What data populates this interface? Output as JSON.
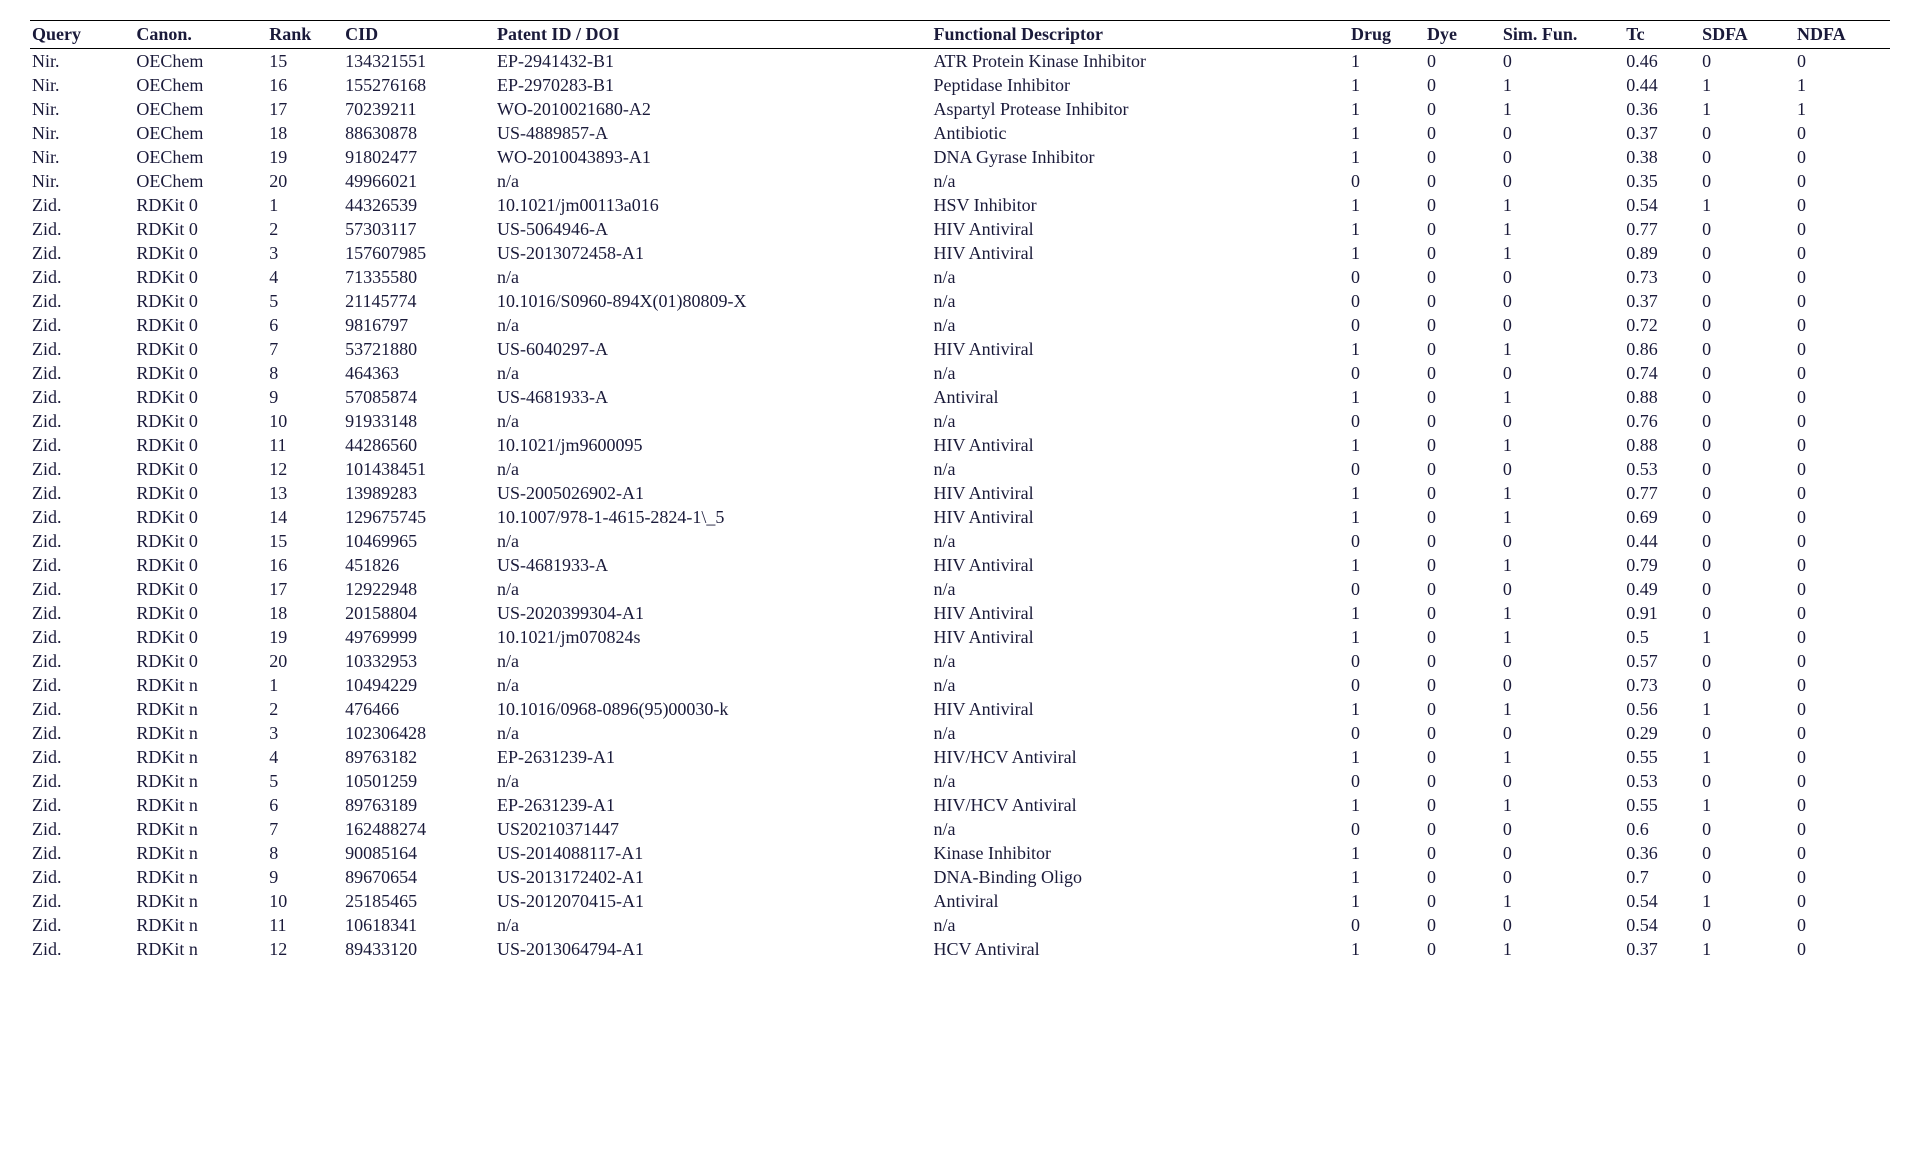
{
  "table": {
    "font_family": "Times New Roman",
    "font_size_pt": 14,
    "text_color": "#1a1a3a",
    "background_color": "#ffffff",
    "header_border_top": "#000000",
    "header_border_bottom": "#000000",
    "columns": [
      {
        "key": "query",
        "label": "Query",
        "width_pct": 5.5
      },
      {
        "key": "canon",
        "label": "Canon.",
        "width_pct": 7
      },
      {
        "key": "rank",
        "label": "Rank",
        "width_pct": 4
      },
      {
        "key": "cid",
        "label": "CID",
        "width_pct": 8
      },
      {
        "key": "patent",
        "label": "Patent ID / DOI",
        "width_pct": 23
      },
      {
        "key": "func",
        "label": "Functional Descriptor",
        "width_pct": 22
      },
      {
        "key": "drug",
        "label": "Drug",
        "width_pct": 4
      },
      {
        "key": "dye",
        "label": "Dye",
        "width_pct": 4
      },
      {
        "key": "sim",
        "label": "Sim. Fun.",
        "width_pct": 6.5
      },
      {
        "key": "tc",
        "label": "Tc",
        "width_pct": 4
      },
      {
        "key": "sdfa",
        "label": "SDFA",
        "width_pct": 5
      },
      {
        "key": "ndfa",
        "label": "NDFA",
        "width_pct": 5
      }
    ],
    "rows": [
      [
        "Nir.",
        "OEChem",
        "15",
        "134321551",
        "EP-2941432-B1",
        "ATR Protein Kinase Inhibitor",
        "1",
        "0",
        "0",
        "0.46",
        "0",
        "0"
      ],
      [
        "Nir.",
        "OEChem",
        "16",
        "155276168",
        "EP-2970283-B1",
        "Peptidase Inhibitor",
        "1",
        "0",
        "1",
        "0.44",
        "1",
        "1"
      ],
      [
        "Nir.",
        "OEChem",
        "17",
        "70239211",
        "WO-2010021680-A2",
        "Aspartyl Protease Inhibitor",
        "1",
        "0",
        "1",
        "0.36",
        "1",
        "1"
      ],
      [
        "Nir.",
        "OEChem",
        "18",
        "88630878",
        "US-4889857-A",
        "Antibiotic",
        "1",
        "0",
        "0",
        "0.37",
        "0",
        "0"
      ],
      [
        "Nir.",
        "OEChem",
        "19",
        "91802477",
        "WO-2010043893-A1",
        "DNA Gyrase Inhibitor",
        "1",
        "0",
        "0",
        "0.38",
        "0",
        "0"
      ],
      [
        "Nir.",
        "OEChem",
        "20",
        "49966021",
        "n/a",
        "n/a",
        "0",
        "0",
        "0",
        "0.35",
        "0",
        "0"
      ],
      [
        "Zid.",
        "RDKit 0",
        "1",
        "44326539",
        "10.1021/jm00113a016",
        "HSV Inhibitor",
        "1",
        "0",
        "1",
        "0.54",
        "1",
        "0"
      ],
      [
        "Zid.",
        "RDKit 0",
        "2",
        "57303117",
        "US-5064946-A",
        "HIV Antiviral",
        "1",
        "0",
        "1",
        "0.77",
        "0",
        "0"
      ],
      [
        "Zid.",
        "RDKit 0",
        "3",
        "157607985",
        "US-2013072458-A1",
        "HIV Antiviral",
        "1",
        "0",
        "1",
        "0.89",
        "0",
        "0"
      ],
      [
        "Zid.",
        "RDKit 0",
        "4",
        "71335580",
        "n/a",
        "n/a",
        "0",
        "0",
        "0",
        "0.73",
        "0",
        "0"
      ],
      [
        "Zid.",
        "RDKit 0",
        "5",
        "21145774",
        "10.1016/S0960-894X(01)80809-X",
        "n/a",
        "0",
        "0",
        "0",
        "0.37",
        "0",
        "0"
      ],
      [
        "Zid.",
        "RDKit 0",
        "6",
        "9816797",
        "n/a",
        "n/a",
        "0",
        "0",
        "0",
        "0.72",
        "0",
        "0"
      ],
      [
        "Zid.",
        "RDKit 0",
        "7",
        "53721880",
        "US-6040297-A",
        "HIV Antiviral",
        "1",
        "0",
        "1",
        "0.86",
        "0",
        "0"
      ],
      [
        "Zid.",
        "RDKit 0",
        "8",
        "464363",
        "n/a",
        "n/a",
        "0",
        "0",
        "0",
        "0.74",
        "0",
        "0"
      ],
      [
        "Zid.",
        "RDKit 0",
        "9",
        "57085874",
        "US-4681933-A",
        "Antiviral",
        "1",
        "0",
        "1",
        "0.88",
        "0",
        "0"
      ],
      [
        "Zid.",
        "RDKit 0",
        "10",
        "91933148",
        "n/a",
        "n/a",
        "0",
        "0",
        "0",
        "0.76",
        "0",
        "0"
      ],
      [
        "Zid.",
        "RDKit 0",
        "11",
        "44286560",
        "10.1021/jm9600095",
        "HIV Antiviral",
        "1",
        "0",
        "1",
        "0.88",
        "0",
        "0"
      ],
      [
        "Zid.",
        "RDKit 0",
        "12",
        "101438451",
        "n/a",
        "n/a",
        "0",
        "0",
        "0",
        "0.53",
        "0",
        "0"
      ],
      [
        "Zid.",
        "RDKit 0",
        "13",
        "13989283",
        "US-2005026902-A1",
        "HIV Antiviral",
        "1",
        "0",
        "1",
        "0.77",
        "0",
        "0"
      ],
      [
        "Zid.",
        "RDKit 0",
        "14",
        "129675745",
        "10.1007/978-1-4615-2824-1\\_5",
        "HIV Antiviral",
        "1",
        "0",
        "1",
        "0.69",
        "0",
        "0"
      ],
      [
        "Zid.",
        "RDKit 0",
        "15",
        "10469965",
        "n/a",
        "n/a",
        "0",
        "0",
        "0",
        "0.44",
        "0",
        "0"
      ],
      [
        "Zid.",
        "RDKit 0",
        "16",
        "451826",
        "US-4681933-A",
        "HIV Antiviral",
        "1",
        "0",
        "1",
        "0.79",
        "0",
        "0"
      ],
      [
        "Zid.",
        "RDKit 0",
        "17",
        "12922948",
        "n/a",
        "n/a",
        "0",
        "0",
        "0",
        "0.49",
        "0",
        "0"
      ],
      [
        "Zid.",
        "RDKit 0",
        "18",
        "20158804",
        "US-2020399304-A1",
        "HIV Antiviral",
        "1",
        "0",
        "1",
        "0.91",
        "0",
        "0"
      ],
      [
        "Zid.",
        "RDKit 0",
        "19",
        "49769999",
        "10.1021/jm070824s",
        "HIV Antiviral",
        "1",
        "0",
        "1",
        "0.5",
        "1",
        "0"
      ],
      [
        "Zid.",
        "RDKit 0",
        "20",
        "10332953",
        "n/a",
        "n/a",
        "0",
        "0",
        "0",
        "0.57",
        "0",
        "0"
      ],
      [
        "Zid.",
        "RDKit n",
        "1",
        "10494229",
        "n/a",
        "n/a",
        "0",
        "0",
        "0",
        "0.73",
        "0",
        "0"
      ],
      [
        "Zid.",
        "RDKit n",
        "2",
        "476466",
        "10.1016/0968-0896(95)00030-k",
        "HIV Antiviral",
        "1",
        "0",
        "1",
        "0.56",
        "1",
        "0"
      ],
      [
        "Zid.",
        "RDKit n",
        "3",
        "102306428",
        "n/a",
        "n/a",
        "0",
        "0",
        "0",
        "0.29",
        "0",
        "0"
      ],
      [
        "Zid.",
        "RDKit n",
        "4",
        "89763182",
        "EP-2631239-A1",
        "HIV/HCV Antiviral",
        "1",
        "0",
        "1",
        "0.55",
        "1",
        "0"
      ],
      [
        "Zid.",
        "RDKit n",
        "5",
        "10501259",
        "n/a",
        "n/a",
        "0",
        "0",
        "0",
        "0.53",
        "0",
        "0"
      ],
      [
        "Zid.",
        "RDKit n",
        "6",
        "89763189",
        "EP-2631239-A1",
        "HIV/HCV Antiviral",
        "1",
        "0",
        "1",
        "0.55",
        "1",
        "0"
      ],
      [
        "Zid.",
        "RDKit n",
        "7",
        "162488274",
        "US20210371447",
        "n/a",
        "0",
        "0",
        "0",
        "0.6",
        "0",
        "0"
      ],
      [
        "Zid.",
        "RDKit n",
        "8",
        "90085164",
        "US-2014088117-A1",
        "Kinase Inhibitor",
        "1",
        "0",
        "0",
        "0.36",
        "0",
        "0"
      ],
      [
        "Zid.",
        "RDKit n",
        "9",
        "89670654",
        "US-2013172402-A1",
        "DNA-Binding Oligo",
        "1",
        "0",
        "0",
        "0.7",
        "0",
        "0"
      ],
      [
        "Zid.",
        "RDKit n",
        "10",
        "25185465",
        "US-2012070415-A1",
        "Antiviral",
        "1",
        "0",
        "1",
        "0.54",
        "1",
        "0"
      ],
      [
        "Zid.",
        "RDKit n",
        "11",
        "10618341",
        "n/a",
        "n/a",
        "0",
        "0",
        "0",
        "0.54",
        "0",
        "0"
      ],
      [
        "Zid.",
        "RDKit n",
        "12",
        "89433120",
        "US-2013064794-A1",
        "HCV Antiviral",
        "1",
        "0",
        "1",
        "0.37",
        "1",
        "0"
      ]
    ]
  }
}
